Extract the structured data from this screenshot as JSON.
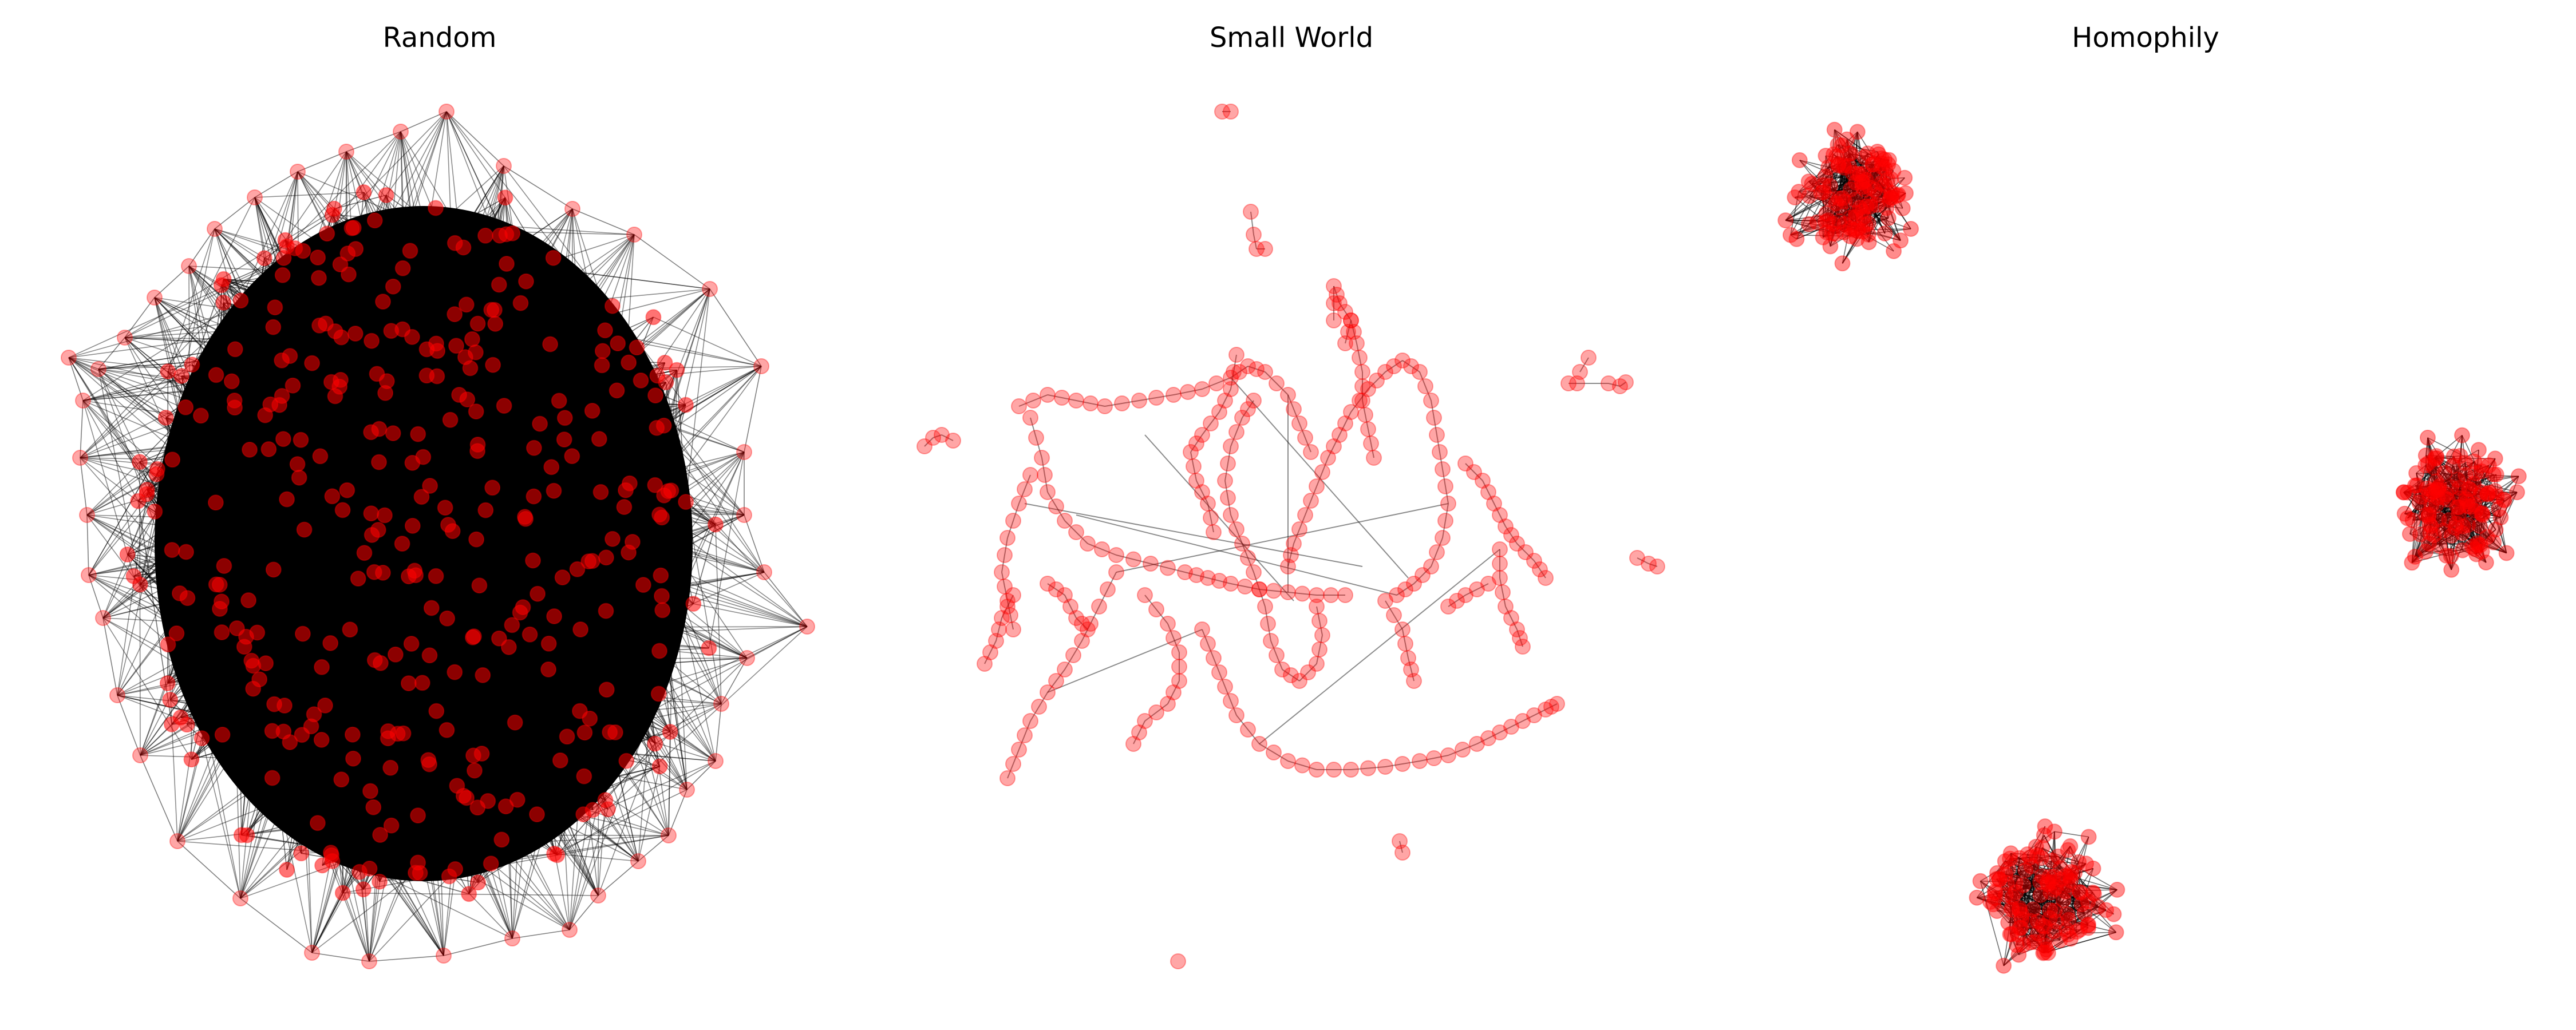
{
  "colors": {
    "node_fill": "#ff0000",
    "edge": "#000000",
    "background": "#ffffff"
  },
  "panels": [
    {
      "title": "Random",
      "graph_type": "random"
    },
    {
      "title": "Small World",
      "graph_type": "small-world"
    },
    {
      "title": "Homophily",
      "graph_type": "homophily-clusters"
    }
  ]
}
